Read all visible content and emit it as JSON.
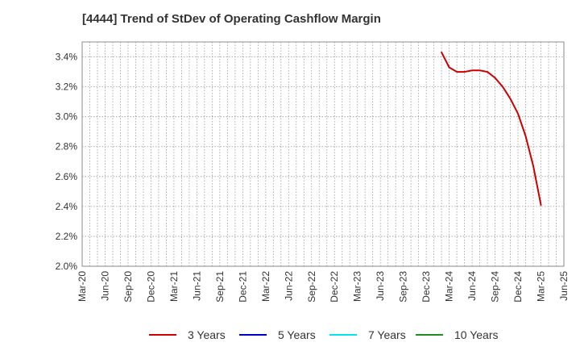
{
  "chart_data": {
    "type": "line",
    "title": "[4444]  Trend of StDev of Operating Cashflow Margin",
    "xlabel": "",
    "ylabel": "",
    "x_ticks": [
      "Mar-20",
      "Jun-20",
      "Sep-20",
      "Dec-20",
      "Mar-21",
      "Jun-21",
      "Sep-21",
      "Dec-21",
      "Mar-22",
      "Jun-22",
      "Sep-22",
      "Dec-22",
      "Mar-23",
      "Jun-23",
      "Sep-23",
      "Dec-23",
      "Mar-24",
      "Jun-24",
      "Sep-24",
      "Dec-24",
      "Mar-25",
      "Jun-25"
    ],
    "y_ticks": [
      "2.0%",
      "2.2%",
      "2.4%",
      "2.6%",
      "2.8%",
      "3.0%",
      "3.2%",
      "3.4%"
    ],
    "ylim": [
      2.0,
      3.5
    ],
    "y_unit": "%",
    "grid": true,
    "legend_position": "bottom",
    "series": [
      {
        "name": "3 Years",
        "color": "#cc0000",
        "x": [
          "Feb-24",
          "Mar-24",
          "Apr-24",
          "May-24",
          "Jun-24",
          "Jul-24",
          "Aug-24",
          "Sep-24",
          "Oct-24",
          "Nov-24",
          "Dec-24",
          "Jan-25",
          "Feb-25",
          "Mar-25"
        ],
        "values": [
          3.43,
          3.33,
          3.3,
          3.3,
          3.31,
          3.31,
          3.3,
          3.26,
          3.2,
          3.12,
          3.02,
          2.87,
          2.67,
          2.41
        ]
      },
      {
        "name": "5 Years",
        "color": "#0000cc",
        "x": [],
        "values": []
      },
      {
        "name": "7 Years",
        "color": "#00e5ee",
        "x": [],
        "values": []
      },
      {
        "name": "10 Years",
        "color": "#228b22",
        "x": [],
        "values": []
      }
    ]
  }
}
